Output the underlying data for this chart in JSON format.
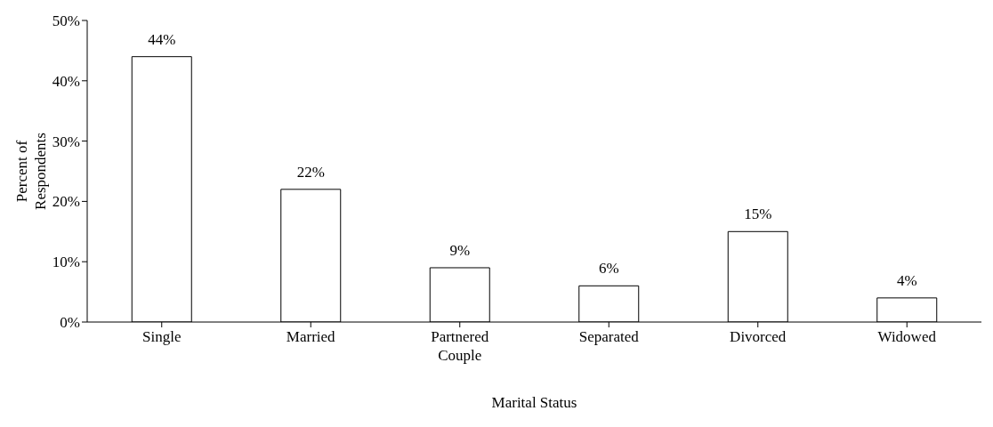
{
  "chart_data": {
    "type": "bar",
    "xlabel": "Marital Status",
    "ylabel": "Percent of Respondents",
    "categories": [
      "Single",
      "Married",
      "Partnered Couple",
      "Separated",
      "Divorced",
      "Widowed"
    ],
    "values": [
      44,
      22,
      9,
      6,
      15,
      4
    ],
    "value_labels": [
      "44%",
      "22%",
      "9%",
      "6%",
      "15%",
      "4%"
    ],
    "color": "#ffffff",
    "ylim": [
      0,
      50
    ],
    "yticks": [
      {
        "value": 0,
        "label": "0%"
      },
      {
        "value": 10,
        "label": "10%"
      },
      {
        "value": 20,
        "label": "20%"
      },
      {
        "value": 30,
        "label": "30%"
      },
      {
        "value": 40,
        "label": "40%"
      },
      {
        "value": 50,
        "label": "50%"
      }
    ],
    "grid": false,
    "legend": false
  }
}
